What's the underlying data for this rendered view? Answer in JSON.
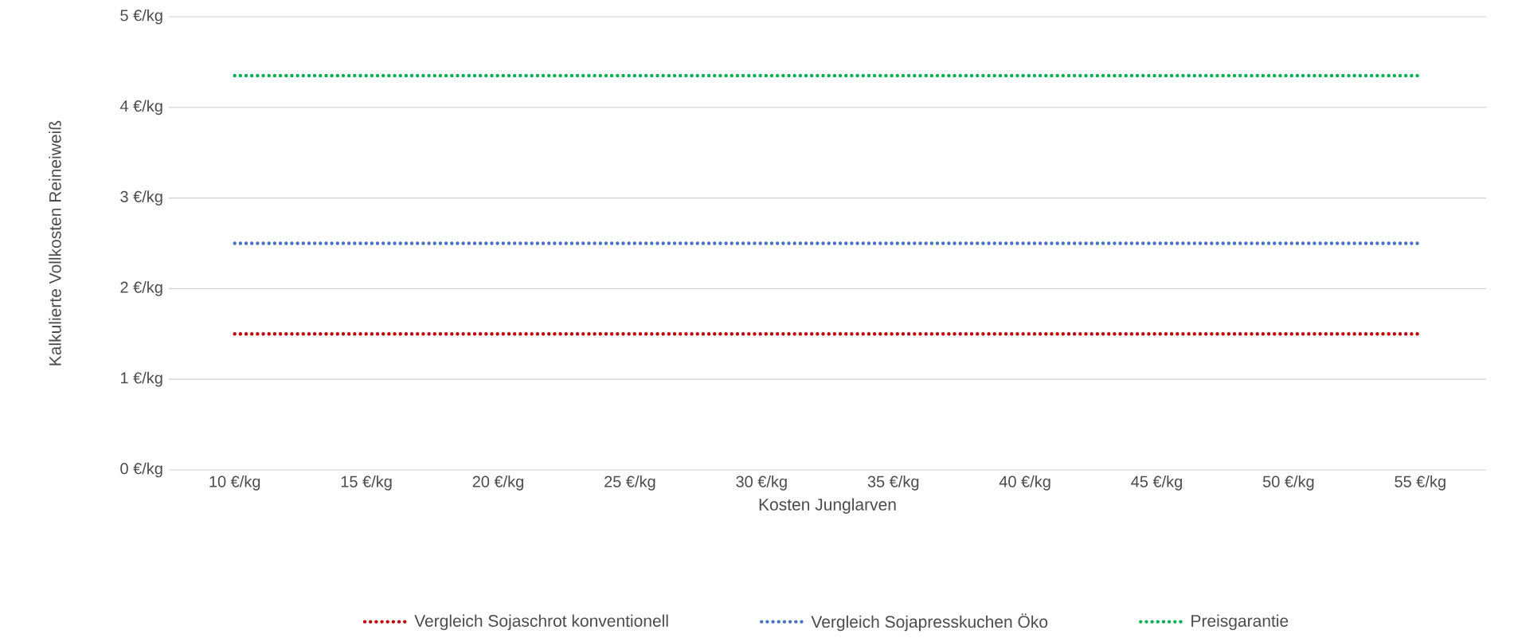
{
  "chart_data": {
    "type": "line",
    "xlabel": "Kosten Junglarven",
    "ylabel": "Kalkulierte Vollkosten Reineiweiß",
    "categories": [
      "10 €/kg",
      "15 €/kg",
      "20 €/kg",
      "25 €/kg",
      "30 €/kg",
      "35 €/kg",
      "40 €/kg",
      "45 €/kg",
      "50 €/kg",
      "55 €/kg"
    ],
    "series": [
      {
        "name": "Vergleich Sojaschrot konventionell",
        "color": "#c00000",
        "values": [
          1.5,
          1.5,
          1.5,
          1.5,
          1.5,
          1.5,
          1.5,
          1.5,
          1.5,
          1.5
        ]
      },
      {
        "name": "Vergleich Sojapresskuchen Öko",
        "color": "#4472c4",
        "values": [
          2.5,
          2.5,
          2.5,
          2.5,
          2.5,
          2.5,
          2.5,
          2.5,
          2.5,
          2.5
        ]
      },
      {
        "name": "Preisgarantie",
        "color": "#00b050",
        "values": [
          4.35,
          4.35,
          4.35,
          4.35,
          4.35,
          4.35,
          4.35,
          4.35,
          4.35,
          4.35
        ]
      }
    ],
    "ylim": [
      0,
      5
    ],
    "yticks": [
      {
        "value": 0,
        "label": "0 €/kg"
      },
      {
        "value": 1,
        "label": "1 €/kg"
      },
      {
        "value": 2,
        "label": "2 €/kg"
      },
      {
        "value": 3,
        "label": "3 €/kg"
      },
      {
        "value": 4,
        "label": "4 €/kg"
      },
      {
        "value": 5,
        "label": "5 €/kg"
      }
    ],
    "grid": "y",
    "legend": "bottom",
    "line_style": "dotted",
    "marker": "none"
  }
}
